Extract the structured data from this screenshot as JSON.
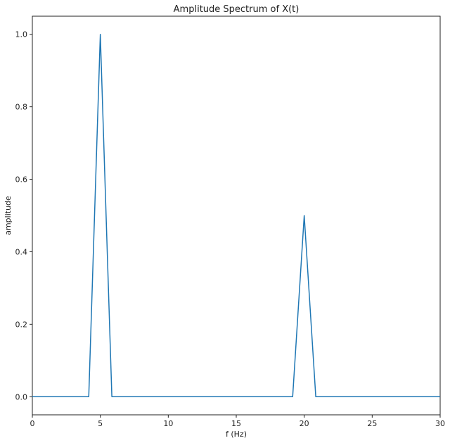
{
  "chart_data": {
    "type": "line",
    "title": "Amplitude Spectrum of X(t)",
    "xlabel": "f (Hz)",
    "ylabel": "amplitude",
    "xlim": [
      0,
      30
    ],
    "ylim": [
      -0.05,
      1.05
    ],
    "xticks": [
      0,
      5,
      10,
      15,
      20,
      25,
      30
    ],
    "xtick_labels": [
      "0",
      "5",
      "10",
      "15",
      "20",
      "25",
      "30"
    ],
    "yticks": [
      0.0,
      0.2,
      0.4,
      0.6,
      0.8,
      1.0
    ],
    "ytick_labels": [
      "0.0",
      "0.2",
      "0.4",
      "0.6",
      "0.8",
      "1.0"
    ],
    "grid": false,
    "legend": "none",
    "series": [
      {
        "color": "#1f77b4",
        "x": [
          0,
          4.15,
          5.0,
          5.85,
          19.15,
          20.0,
          20.85,
          30
        ],
        "y": [
          0.0,
          0.0,
          1.0,
          0.0,
          0.0,
          0.5,
          0.0,
          0.0
        ]
      }
    ]
  }
}
